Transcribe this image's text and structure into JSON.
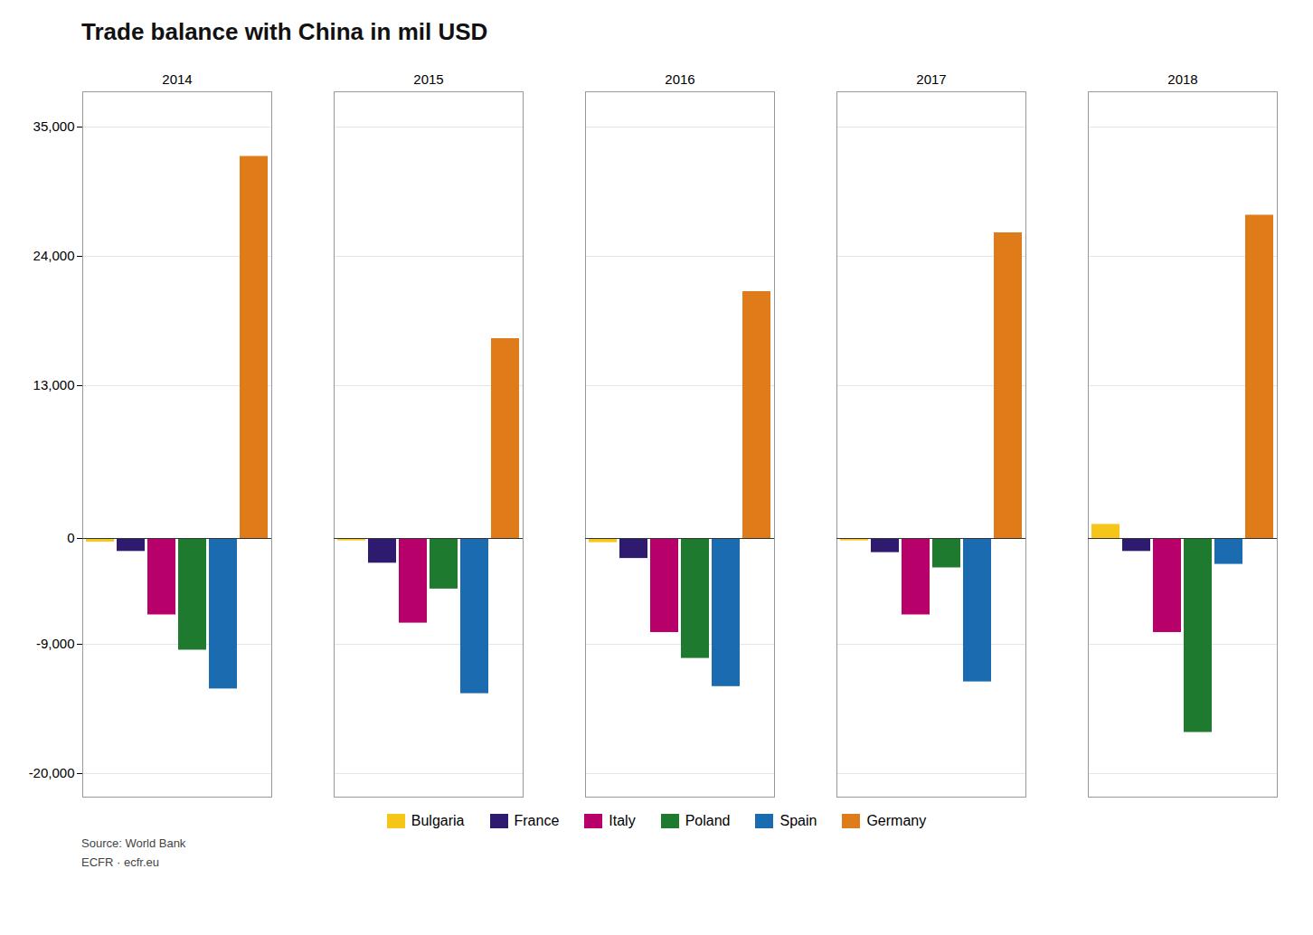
{
  "chart_data": {
    "type": "bar",
    "title": "Trade balance with China in mil USD",
    "categories": [
      "2014",
      "2015",
      "2016",
      "2017",
      "2018"
    ],
    "series": [
      {
        "name": "Bulgaria",
        "color": "#F5C518",
        "values": [
          -300,
          -200,
          -350,
          -200,
          1200
        ]
      },
      {
        "name": "France",
        "color": "#2E1A6E",
        "values": [
          -1100,
          -2100,
          -1700,
          -1200,
          -1100
        ]
      },
      {
        "name": "Italy",
        "color": "#B8006A",
        "values": [
          -6500,
          -7200,
          -8000,
          -6500,
          -8000
        ]
      },
      {
        "name": "Poland",
        "color": "#1E7A2E",
        "values": [
          -9500,
          -4300,
          -10200,
          -2500,
          -16500
        ]
      },
      {
        "name": "Spain",
        "color": "#1B6BB0",
        "values": [
          -12800,
          -13200,
          -12600,
          -12200,
          -2200
        ]
      },
      {
        "name": "Germany",
        "color": "#E07B1A",
        "values": [
          32500,
          17000,
          21000,
          26000,
          27500
        ]
      }
    ],
    "ylim": [
      -22000,
      38000
    ],
    "yticks": [
      {
        "value": -20000,
        "label": "-20,000"
      },
      {
        "value": -9000,
        "label": "-9,000"
      },
      0,
      {
        "value": 13000,
        "label": "13,000"
      },
      {
        "value": 24000,
        "label": "24,000"
      },
      {
        "value": 35000,
        "label": "35,000"
      }
    ],
    "grid": true,
    "legend": "bottom",
    "annotations": [
      "Source: World Bank",
      "ECFR · ecfr.eu"
    ]
  }
}
